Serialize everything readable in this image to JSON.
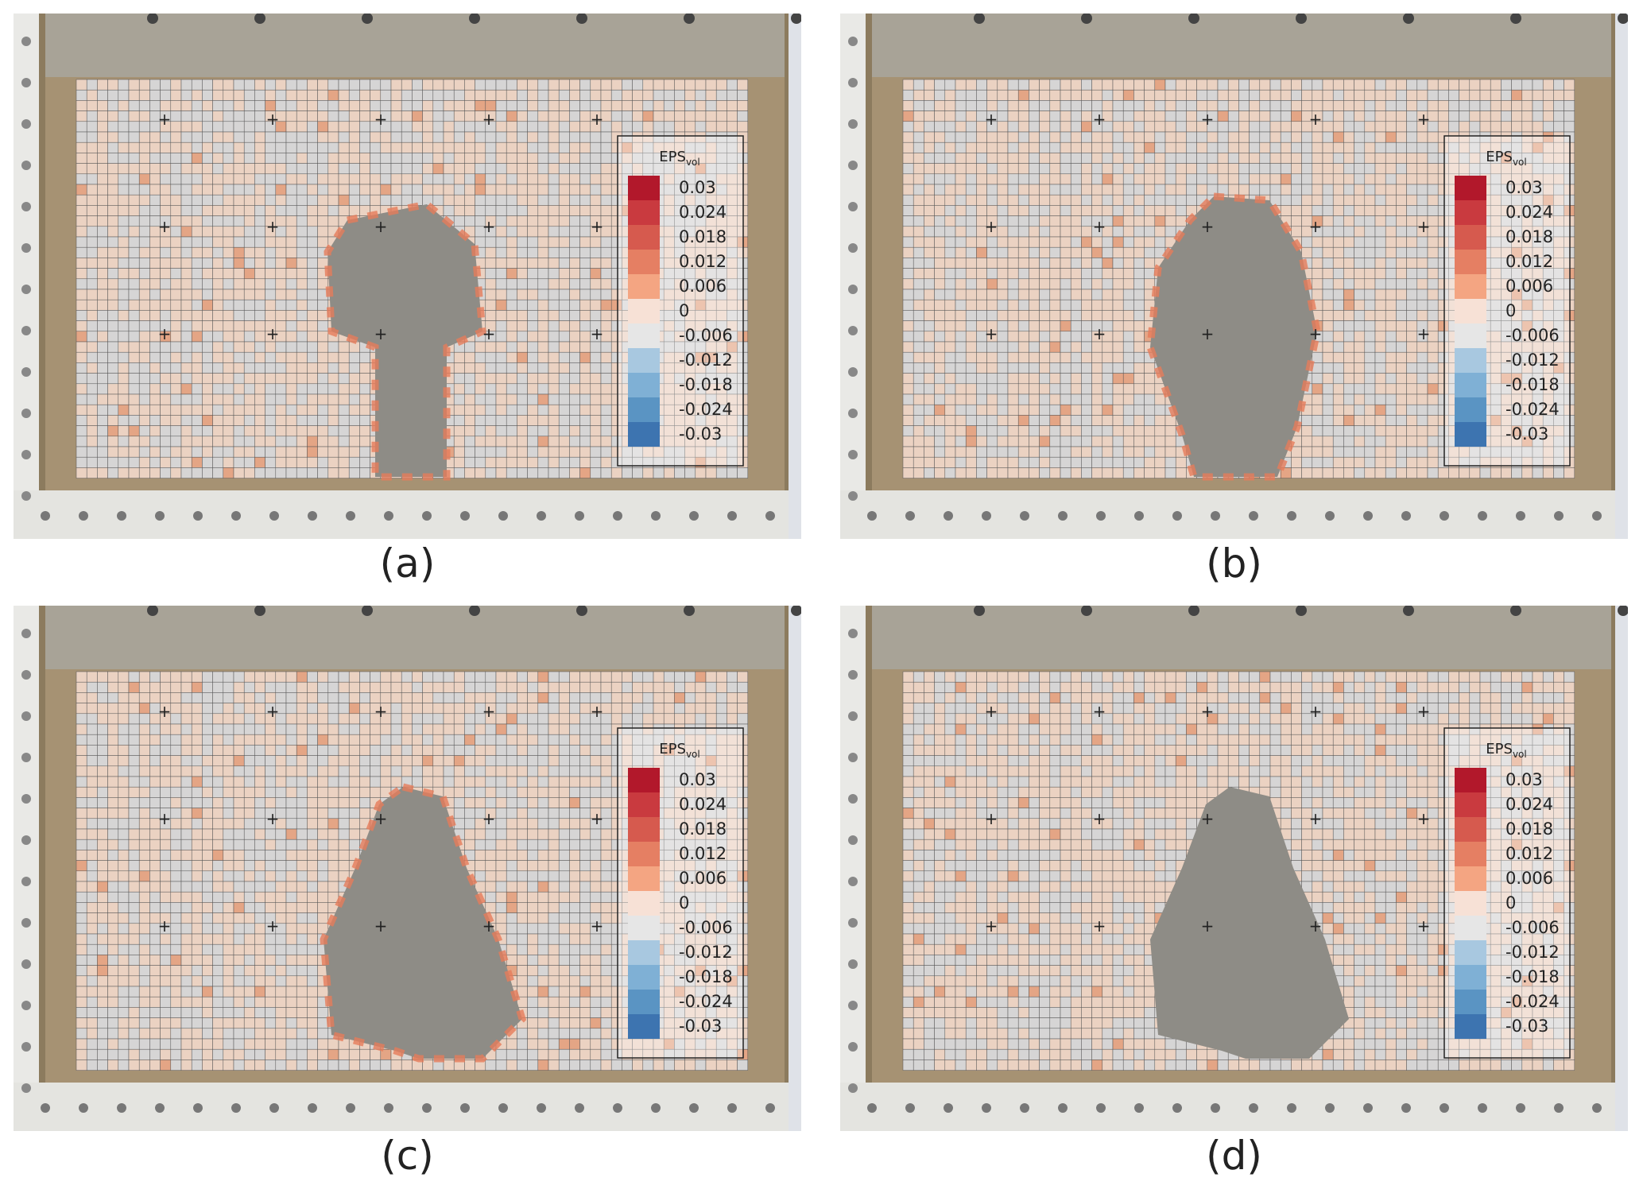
{
  "panels": [
    {
      "label": "(a)"
    },
    {
      "label": "(b)"
    },
    {
      "label": "(c)"
    },
    {
      "label": "(d)"
    }
  ],
  "legend": {
    "title": "EPS",
    "title_subscript": "vol",
    "labels": [
      "0.03",
      "0.024",
      "0.018",
      "0.012",
      "0.006",
      "0",
      "-0.006",
      "-0.012",
      "-0.018",
      "-0.024",
      "-0.03"
    ]
  }
}
